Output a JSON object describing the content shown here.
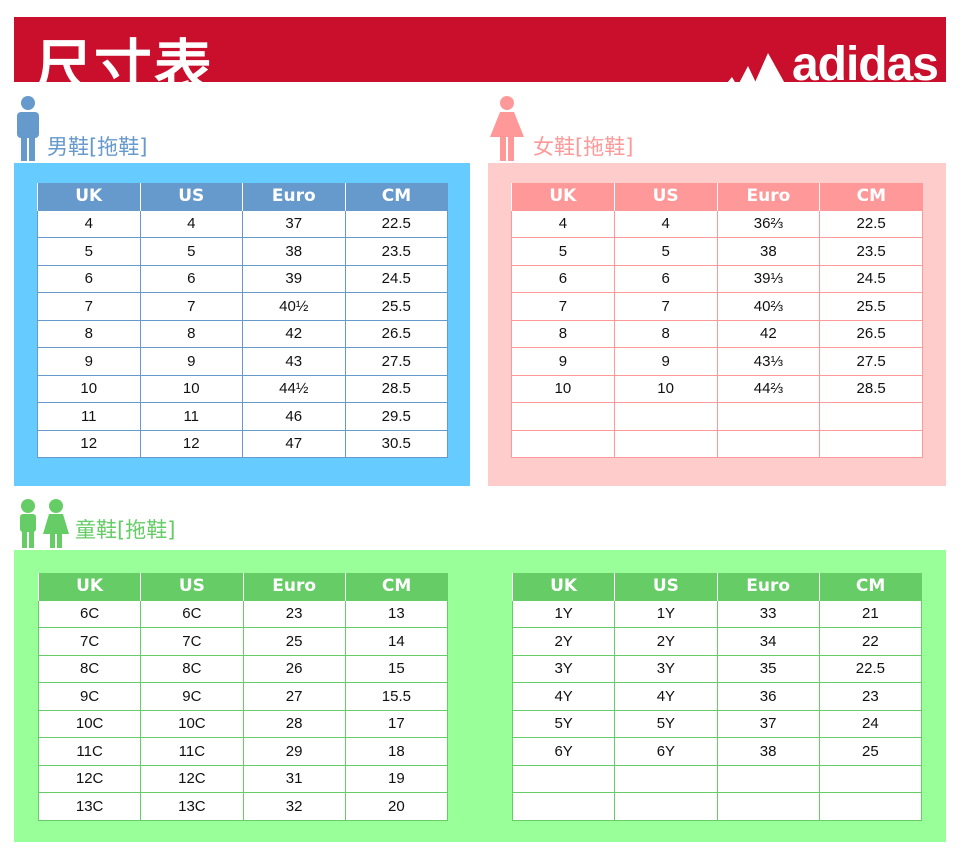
{
  "header": {
    "title": "尺寸表",
    "brand": "adidas",
    "bar_color": "#c90f2c"
  },
  "columns": [
    "UK",
    "US",
    "Euro",
    "CM"
  ],
  "men": {
    "label": "男鞋[拖鞋]",
    "panel_color": "#66ccff",
    "header_color": "#6699cc",
    "icon": "man-icon",
    "rows": [
      [
        "4",
        "4",
        "37",
        "22.5"
      ],
      [
        "5",
        "5",
        "38",
        "23.5"
      ],
      [
        "6",
        "6",
        "39",
        "24.5"
      ],
      [
        "7",
        "7",
        "40½",
        "25.5"
      ],
      [
        "8",
        "8",
        "42",
        "26.5"
      ],
      [
        "9",
        "9",
        "43",
        "27.5"
      ],
      [
        "10",
        "10",
        "44½",
        "28.5"
      ],
      [
        "11",
        "11",
        "46",
        "29.5"
      ],
      [
        "12",
        "12",
        "47",
        "30.5"
      ]
    ]
  },
  "women": {
    "label": "女鞋[拖鞋]",
    "panel_color": "#ffcccc",
    "header_color": "#ff9999",
    "icon": "woman-icon",
    "rows": [
      [
        "4",
        "4",
        "36⅔",
        "22.5"
      ],
      [
        "5",
        "5",
        "38",
        "23.5"
      ],
      [
        "6",
        "6",
        "39⅓",
        "24.5"
      ],
      [
        "7",
        "7",
        "40⅔",
        "25.5"
      ],
      [
        "8",
        "8",
        "42",
        "26.5"
      ],
      [
        "9",
        "9",
        "43⅓",
        "27.5"
      ],
      [
        "10",
        "10",
        "44⅔",
        "28.5"
      ],
      [
        "",
        "",
        "",
        ""
      ],
      [
        "",
        "",
        "",
        ""
      ]
    ]
  },
  "kids": {
    "label": "童鞋[拖鞋]",
    "panel_color": "#99ff99",
    "header_color": "#66cc66",
    "icon": "children-icon",
    "table1": [
      [
        "6C",
        "6C",
        "23",
        "13"
      ],
      [
        "7C",
        "7C",
        "25",
        "14"
      ],
      [
        "8C",
        "8C",
        "26",
        "15"
      ],
      [
        "9C",
        "9C",
        "27",
        "15.5"
      ],
      [
        "10C",
        "10C",
        "28",
        "17"
      ],
      [
        "11C",
        "11C",
        "29",
        "18"
      ],
      [
        "12C",
        "12C",
        "31",
        "19"
      ],
      [
        "13C",
        "13C",
        "32",
        "20"
      ]
    ],
    "table2": [
      [
        "1Y",
        "1Y",
        "33",
        "21"
      ],
      [
        "2Y",
        "2Y",
        "34",
        "22"
      ],
      [
        "3Y",
        "3Y",
        "35",
        "22.5"
      ],
      [
        "4Y",
        "4Y",
        "36",
        "23"
      ],
      [
        "5Y",
        "5Y",
        "37",
        "24"
      ],
      [
        "6Y",
        "6Y",
        "38",
        "25"
      ],
      [
        "",
        "",
        "",
        ""
      ],
      [
        "",
        "",
        "",
        ""
      ]
    ]
  }
}
